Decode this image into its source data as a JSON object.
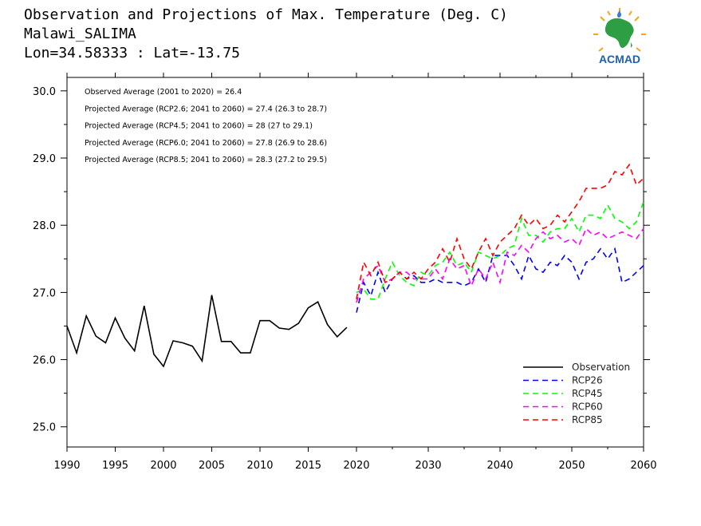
{
  "header": {
    "title": "Observation and Projections of Max. Temperature (Deg. C)",
    "location": "Malawi_SALIMA",
    "coords": "Lon=34.58333 : Lat=-13.75"
  },
  "logo": {
    "text": "ACMAD",
    "icon": "africa-map-logo-icon",
    "colors": {
      "africa": "#2e9e45",
      "sun": "#f2a51a",
      "text": "#1f5fb0",
      "drop": "#3a7bd5"
    }
  },
  "annotations": [
    "Observed Average (2001 to 2020) = 26.4",
    "Projected Average (RCP2.6; 2041 to 2060) = 27.4 (26.3 to 28.7)",
    "Projected Average (RCP4.5; 2041 to 2060) = 28 (27 to 29.1)",
    "Projected Average (RCP6.0; 2041 to 2060) = 27.8 (26.9 to 28.6)",
    "Projected Average (RCP8.5; 2041 to 2060) = 28.3 (27.2 to 29.5)"
  ],
  "chart_data": {
    "type": "line",
    "xlim": [
      1990,
      2060
    ],
    "ylim": [
      24.7,
      30.2
    ],
    "x_ticks": [
      "1990",
      "1995",
      "2000",
      "2005",
      "2010",
      "2015",
      "2020",
      "2030",
      "2040",
      "2050",
      "2060"
    ],
    "y_ticks": [
      "25.0",
      "26.0",
      "27.0",
      "28.0",
      "29.0",
      "30.0"
    ],
    "grid": false,
    "legend_position": "bottom-right",
    "series": [
      {
        "name": "Observation",
        "color": "#000000",
        "style": "solid",
        "x": [
          1990,
          1991,
          1992,
          1993,
          1994,
          1995,
          1996,
          1997,
          1998,
          1999,
          2000,
          2001,
          2002,
          2003,
          2004,
          2005,
          2006,
          2007,
          2008,
          2009,
          2010,
          2011,
          2012,
          2013,
          2014,
          2015,
          2016,
          2017,
          2018,
          2019
        ],
        "y": [
          26.5,
          26.1,
          26.65,
          26.35,
          26.25,
          26.62,
          26.32,
          26.13,
          26.8,
          26.08,
          25.9,
          26.28,
          26.25,
          26.2,
          25.98,
          26.96,
          26.27,
          26.27,
          26.1,
          26.1,
          26.58,
          26.58,
          26.47,
          26.45,
          26.54,
          26.77,
          26.86,
          26.52,
          26.34,
          26.48
        ]
      },
      {
        "name": "RCP26",
        "color": "#0000ff",
        "style": "dashed",
        "x": [
          2020,
          2021,
          2022,
          2023,
          2024,
          2025,
          2026,
          2027,
          2028,
          2029,
          2030,
          2031,
          2032,
          2033,
          2034,
          2035,
          2036,
          2037,
          2038,
          2039,
          2040,
          2041,
          2042,
          2043,
          2044,
          2045,
          2046,
          2047,
          2048,
          2049,
          2050,
          2051,
          2052,
          2053,
          2054,
          2055,
          2056,
          2057,
          2058,
          2059,
          2060
        ],
        "y": [
          26.7,
          27.15,
          26.95,
          27.3,
          27.0,
          27.2,
          27.3,
          27.2,
          27.25,
          27.15,
          27.15,
          27.2,
          27.15,
          27.15,
          27.15,
          27.1,
          27.15,
          27.35,
          27.15,
          27.55,
          27.55,
          27.55,
          27.4,
          27.2,
          27.55,
          27.35,
          27.3,
          27.45,
          27.4,
          27.55,
          27.45,
          27.2,
          27.45,
          27.5,
          27.65,
          27.5,
          27.65,
          27.15,
          27.2,
          27.3,
          27.4
        ]
      },
      {
        "name": "RCP45",
        "color": "#00ff00",
        "style": "dashed",
        "x": [
          2020,
          2021,
          2022,
          2023,
          2024,
          2025,
          2026,
          2027,
          2028,
          2029,
          2030,
          2031,
          2032,
          2033,
          2034,
          2035,
          2036,
          2037,
          2038,
          2039,
          2040,
          2041,
          2042,
          2043,
          2044,
          2045,
          2046,
          2047,
          2048,
          2049,
          2050,
          2051,
          2052,
          2053,
          2054,
          2055,
          2056,
          2057,
          2058,
          2059,
          2060
        ],
        "y": [
          27.0,
          27.05,
          26.9,
          26.9,
          27.2,
          27.45,
          27.25,
          27.15,
          27.1,
          27.3,
          27.25,
          27.4,
          27.45,
          27.6,
          27.4,
          27.45,
          27.3,
          27.6,
          27.55,
          27.5,
          27.55,
          27.65,
          27.7,
          28.1,
          27.85,
          27.85,
          27.75,
          27.9,
          27.95,
          27.95,
          28.1,
          27.9,
          28.15,
          28.15,
          28.1,
          28.3,
          28.1,
          28.05,
          27.95,
          28.05,
          28.35
        ]
      },
      {
        "name": "RCP60",
        "color": "#ff00ff",
        "style": "dashed",
        "x": [
          2020,
          2021,
          2022,
          2023,
          2024,
          2025,
          2026,
          2027,
          2028,
          2029,
          2030,
          2031,
          2032,
          2033,
          2034,
          2035,
          2036,
          2037,
          2038,
          2039,
          2040,
          2041,
          2042,
          2043,
          2044,
          2045,
          2046,
          2047,
          2048,
          2049,
          2050,
          2051,
          2052,
          2053,
          2054,
          2055,
          2056,
          2057,
          2058,
          2059,
          2060
        ],
        "y": [
          26.85,
          27.2,
          27.3,
          27.4,
          27.15,
          27.2,
          27.3,
          27.3,
          27.2,
          27.2,
          27.2,
          27.35,
          27.2,
          27.5,
          27.35,
          27.4,
          27.1,
          27.35,
          27.2,
          27.45,
          27.15,
          27.6,
          27.55,
          27.7,
          27.6,
          27.8,
          27.9,
          27.8,
          27.85,
          27.75,
          27.8,
          27.7,
          27.95,
          27.85,
          27.9,
          27.8,
          27.85,
          27.9,
          27.85,
          27.8,
          27.95
        ]
      },
      {
        "name": "RCP85",
        "color": "#ff0000",
        "style": "dashed",
        "x": [
          2020,
          2021,
          2022,
          2023,
          2024,
          2025,
          2026,
          2027,
          2028,
          2029,
          2030,
          2031,
          2032,
          2033,
          2034,
          2035,
          2036,
          2037,
          2038,
          2039,
          2040,
          2041,
          2042,
          2043,
          2044,
          2045,
          2046,
          2047,
          2048,
          2049,
          2050,
          2051,
          2052,
          2053,
          2054,
          2055,
          2056,
          2057,
          2058,
          2059,
          2060
        ],
        "y": [
          26.9,
          27.45,
          27.25,
          27.45,
          27.15,
          27.2,
          27.3,
          27.2,
          27.3,
          27.2,
          27.35,
          27.45,
          27.65,
          27.45,
          27.8,
          27.5,
          27.35,
          27.6,
          27.8,
          27.55,
          27.75,
          27.85,
          27.95,
          28.15,
          28.0,
          28.1,
          27.95,
          28.0,
          28.15,
          28.05,
          28.2,
          28.35,
          28.55,
          28.55,
          28.55,
          28.6,
          28.8,
          28.75,
          28.9,
          28.6,
          28.7
        ]
      }
    ]
  }
}
